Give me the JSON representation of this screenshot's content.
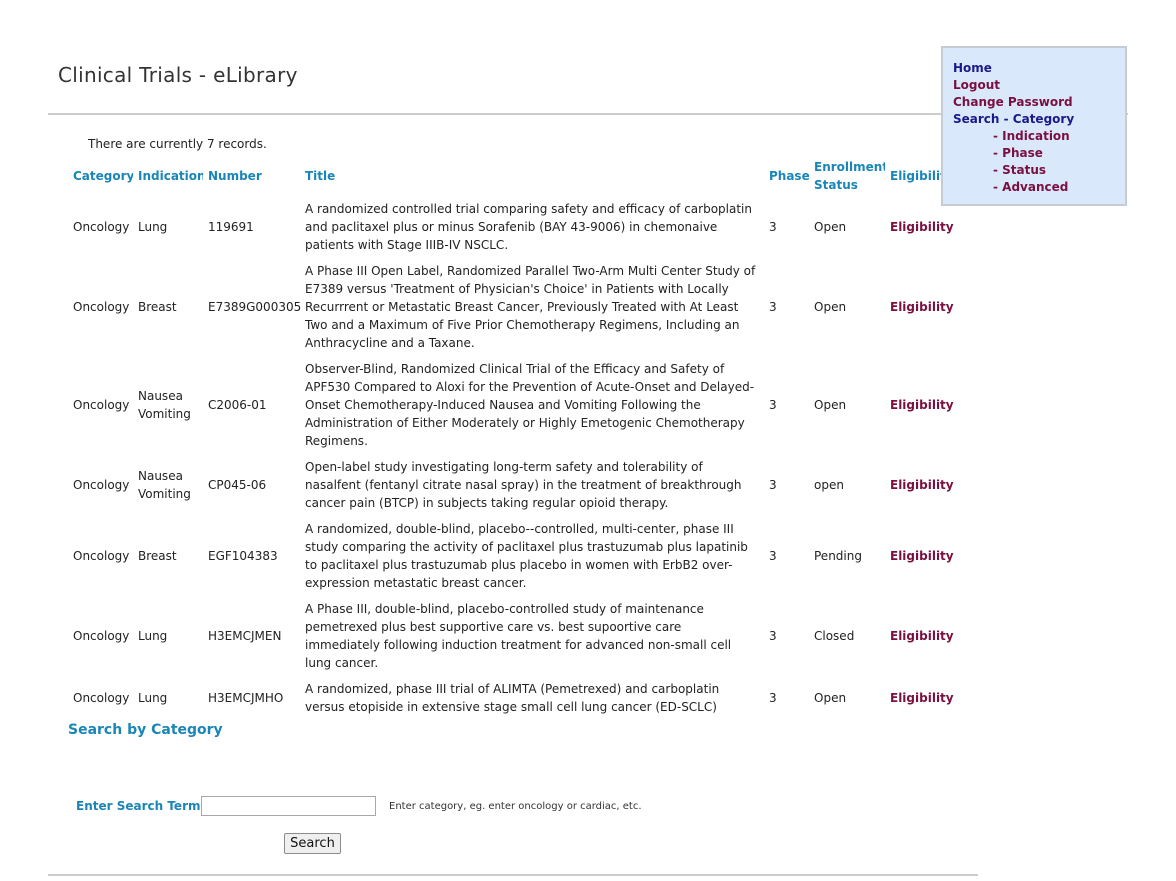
{
  "page": {
    "title": "Clinical Trials - eLibrary",
    "record_count_text": "There are currently 7 records."
  },
  "nav": {
    "home": "Home",
    "logout": "Logout",
    "change_password": "Change Password",
    "search_category": "Search - Category",
    "indication": "- Indication",
    "phase": "- Phase",
    "status": "- Status",
    "advanced": "- Advanced"
  },
  "table": {
    "headers": [
      "Category",
      "Indication",
      "Number",
      "Title",
      "Phase",
      "Enrollment Status",
      "Eligibility"
    ],
    "rows": [
      {
        "category": "Oncology",
        "indication": "Lung",
        "number": "119691",
        "title": "A randomized controlled trial comparing safety and efficacy of carboplatin and paclitaxel plus or minus Sorafenib (BAY 43-9006) in chemonaive patients with Stage IIIB-IV NSCLC.",
        "phase": "3",
        "status": "Open",
        "eligibility": "Eligibility"
      },
      {
        "category": "Oncology",
        "indication": "Breast",
        "number": "E7389G000305",
        "title": "A Phase III Open Label, Randomized Parallel Two-Arm Multi Center Study of E7389 versus 'Treatment of Physician's Choice' in Patients with Locally Recurrrent or Metastatic Breast Cancer, Previously Treated with At Least Two and a Maximum of Five Prior Chemotherapy Regimens, Including an Anthracycline and a Taxane.",
        "phase": "3",
        "status": "Open",
        "eligibility": "Eligibility"
      },
      {
        "category": "Oncology",
        "indication": "Nausea Vomiting",
        "number": "C2006-01",
        "title": "Observer-Blind, Randomized Clinical Trial of the Efficacy and Safety of APF530 Compared to Aloxi for the Prevention of Acute-Onset and Delayed-Onset Chemotherapy-Induced Nausea and Vomiting Following the Administration of Either Moderately or Highly Emetogenic Chemotherapy Regimens.",
        "phase": "3",
        "status": "Open",
        "eligibility": "Eligibility"
      },
      {
        "category": "Oncology",
        "indication": "Nausea Vomiting",
        "number": "CP045-06",
        "title": "Open-label study investigating long-term safety and tolerability of nasalfent (fentanyl citrate nasal spray) in the treatment of breakthrough cancer pain (BTCP) in subjects taking regular opioid therapy.",
        "phase": "3",
        "status": "open",
        "eligibility": "Eligibility"
      },
      {
        "category": "Oncology",
        "indication": "Breast",
        "number": "EGF104383",
        "title": "A randomized, double-blind, placebo--controlled, multi-center, phase III study comparing the activity of paclitaxel plus trastuzumab plus lapatinib to paclitaxel plus trastuzumab plus placebo in women with ErbB2 over-expression metastatic breast cancer.",
        "phase": "3",
        "status": "Pending",
        "eligibility": "Eligibility"
      },
      {
        "category": "Oncology",
        "indication": "Lung",
        "number": "H3EMCJMEN",
        "title": "A Phase III, double-blind, placebo-controlled study of maintenance pemetrexed plus best supportive care vs. best supoortive care immediately following induction treatment for advanced non-small cell lung cancer.",
        "phase": "3",
        "status": "Closed",
        "eligibility": "Eligibility"
      },
      {
        "category": "Oncology",
        "indication": "Lung",
        "number": "H3EMCJMHO",
        "title": "A randomized, phase III trial of ALIMTA (Pemetrexed) and carboplatin versus etopiside in extensive stage small cell lung cancer (ED-SCLC)",
        "phase": "3",
        "status": "Open",
        "eligibility": "Eligibility"
      }
    ]
  },
  "search": {
    "heading": "Search by Category",
    "label": "Enter Search Term:",
    "value": "",
    "hint": "Enter category, eg. enter oncology or cardiac, etc.",
    "button": "Search"
  }
}
